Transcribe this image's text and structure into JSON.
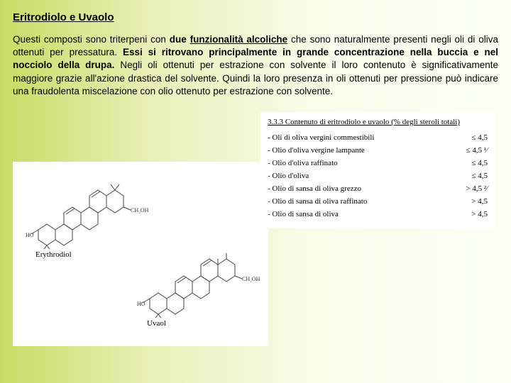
{
  "title": "Eritrodiolo e Uvaolo",
  "paragraph": {
    "p1": "Questi composti sono triterpeni con ",
    "p2_bold": "due",
    "p3_bold_u": "funzionalità alcoliche",
    "p4": " che sono naturalmente presenti negli oli di oliva ottenuti per pressatura. ",
    "p5_bold": "Essi si ritrovano principalmente in grande concentrazione nella buccia e nel nocciolo della drupa.",
    "p6": "  Negli oli ottenuti per estrazione con solvente il loro contenuto è significativamente maggiore grazie all'azione drastica del solvente. Quindi la loro presenza in oli ottenuti per pressione può indicare una fraudolenta miscelazione con olio ottenuto per estrazione con solvente."
  },
  "table": {
    "heading": "3.3.3 Contenuto di eritrodiolo e uvaolo (% degli steroli totali)",
    "rows": [
      {
        "label": "Oli di oliva vergini commestibili",
        "value": "≤ 4,5"
      },
      {
        "label": "Olio d'oliva vergine lampante",
        "value": "≤ 4,5 ¹⁄"
      },
      {
        "label": "Olio d'oliva raffinato",
        "value": "≤ 4,5"
      },
      {
        "label": "Olio d'oliva",
        "value": "≤ 4,5"
      },
      {
        "label": "Olio di sansa di oliva grezzo",
        "value": "> 4,5 ²⁄"
      },
      {
        "label": "Olio di sansa di oliva raffinato",
        "value": "> 4,5"
      },
      {
        "label": "Olio di sansa di oliva",
        "value": "> 4,5"
      }
    ]
  },
  "molecules": {
    "m1_name": "Erythrodiol",
    "m2_name": "Uvaol",
    "ho_label": "HO",
    "ch2oh_label": "CH₂OH"
  },
  "colors": {
    "bg_left": "#c8dc64",
    "bg_right": "#fcfef4",
    "white": "#ffffff",
    "text": "#000000",
    "mol_stroke": "#444444"
  }
}
